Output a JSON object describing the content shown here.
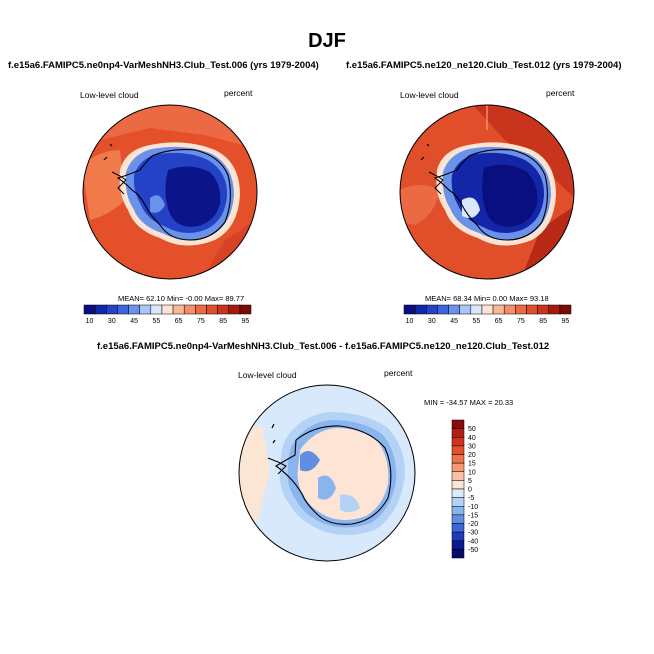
{
  "title": "DJF",
  "colors": {
    "ocean_red": "#e3502a",
    "ocean_dark_red": "#c8351c",
    "edge_orange": "#f07a4a",
    "ice_blue": "#2442c6",
    "ice_dark": "#0c148a",
    "diff_ocean": "#d8e9fb",
    "diff_land": "#fbe6d6",
    "diff_blue": "#9ec4f2",
    "diff_mid": "#5c8ee6"
  },
  "chart_data": [
    {
      "type": "heatmap",
      "title": "f.e15a6.FAMIPC5.ne0np4-VarMeshNH3.Club_Test.006 (yrs 1979-2004)",
      "left_label": "Low-level cloud",
      "right_label": "percent",
      "stats": {
        "mean": "62.10",
        "min": "-0.00",
        "max": "89.77",
        "text": "MEAN=  62.10  Min=  -0.00  Max=  89.77"
      },
      "colorbar": {
        "orientation": "horizontal",
        "ticks": [
          "10",
          "30",
          "45",
          "55",
          "65",
          "75",
          "85",
          "95"
        ],
        "colors": [
          "#0a0f80",
          "#1426a8",
          "#2442c6",
          "#3e66dc",
          "#6a92ea",
          "#a8c6f4",
          "#dbe8fb",
          "#fce4d3",
          "#f8b89a",
          "#f3906b",
          "#ec6a43",
          "#e14e2a",
          "#c8351c",
          "#a41c10",
          "#7a0c08"
        ]
      }
    },
    {
      "type": "heatmap",
      "title": "f.e15a6.FAMIPC5.ne120_ne120.Club_Test.012 (yrs 1979-2004)",
      "left_label": "Low-level cloud",
      "right_label": "percent",
      "stats": {
        "mean": "68.34",
        "min": "0.00",
        "max": "93.18",
        "text": "MEAN=  68.34  Min=   0.00  Max=  93.18"
      },
      "colorbar": {
        "orientation": "horizontal",
        "ticks": [
          "10",
          "30",
          "45",
          "55",
          "65",
          "75",
          "85",
          "95"
        ],
        "colors": [
          "#0a0f80",
          "#1426a8",
          "#2442c6",
          "#3e66dc",
          "#6a92ea",
          "#a8c6f4",
          "#dbe8fb",
          "#fce4d3",
          "#f8b89a",
          "#f3906b",
          "#ec6a43",
          "#e14e2a",
          "#c8351c",
          "#a41c10",
          "#7a0c08"
        ]
      }
    },
    {
      "type": "heatmap",
      "title": "f.e15a6.FAMIPC5.ne0np4-VarMeshNH3.Club_Test.006 - f.e15a6.FAMIPC5.ne120_ne120.Club_Test.012",
      "left_label": "Low-level cloud",
      "right_label": "percent",
      "stats": {
        "min": "-34.57",
        "max": "20.33",
        "text": "MIN = -34.57  MAX =  20.33"
      },
      "colorbar": {
        "orientation": "vertical",
        "ticks": [
          "50",
          "40",
          "30",
          "20",
          "15",
          "10",
          "5",
          "0",
          "-5",
          "-10",
          "-15",
          "-20",
          "-30",
          "-40",
          "-50"
        ],
        "colors": [
          "#8a0c0a",
          "#b31e12",
          "#d2331c",
          "#e6502c",
          "#f07448",
          "#f59a72",
          "#f9c2a6",
          "#fde4d4",
          "#dcebfc",
          "#b4d2f6",
          "#8ab4ee",
          "#5f8ee4",
          "#3a66d6",
          "#1e3cb8",
          "#0c1a92",
          "#060c6c"
        ]
      }
    }
  ]
}
